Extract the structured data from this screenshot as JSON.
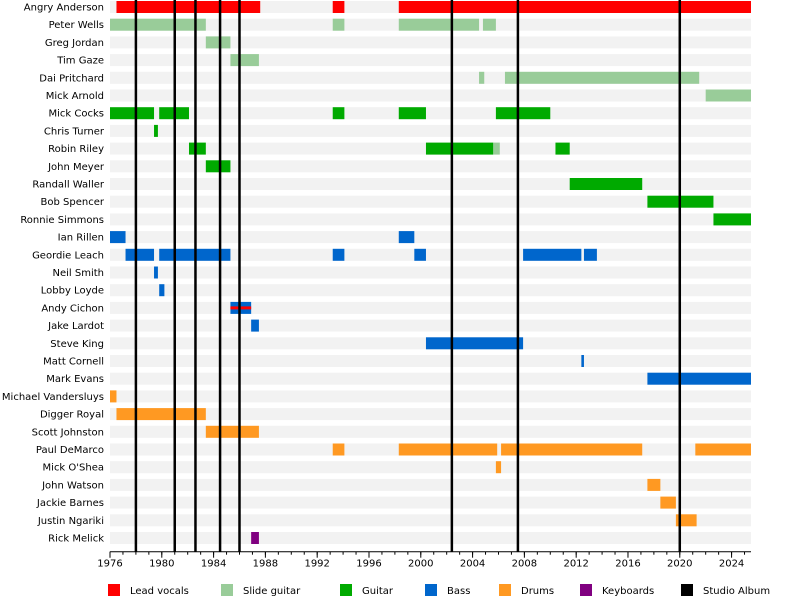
{
  "chart_data": {
    "type": "timeline",
    "x_range": [
      1976,
      2025.5
    ],
    "x_ticks": [
      1976,
      1980,
      1984,
      1988,
      1992,
      1996,
      2000,
      2004,
      2008,
      2012,
      2016,
      2020,
      2024
    ],
    "x_minor_step": 1,
    "grid": "alternating row stripes, vertical minor ticks each year",
    "roles": [
      {
        "key": "vocals",
        "label": "Lead vocals",
        "color": "#ff0000"
      },
      {
        "key": "slide",
        "label": "Slide guitar",
        "color": "#99cc99"
      },
      {
        "key": "guitar",
        "label": "Guitar",
        "color": "#00aa00"
      },
      {
        "key": "bass",
        "label": "Bass",
        "color": "#0066cc"
      },
      {
        "key": "drums",
        "label": "Drums",
        "color": "#ff9922"
      },
      {
        "key": "keys",
        "label": "Keyboards",
        "color": "#800080"
      },
      {
        "key": "album",
        "label": "Studio Album",
        "color": "#000000"
      }
    ],
    "albums": [
      1978,
      1981,
      1982.6,
      1984.5,
      1986,
      2002.4,
      2007.5,
      2020
    ],
    "members": [
      {
        "name": "Angry Anderson",
        "spans": [
          {
            "role": "vocals",
            "start": 1976.5,
            "end": 1987.6
          },
          {
            "role": "vocals",
            "start": 1993.2,
            "end": 1994.1
          },
          {
            "role": "vocals",
            "start": 1998.3,
            "end": 2025.5
          }
        ]
      },
      {
        "name": "Peter Wells",
        "spans": [
          {
            "role": "slide",
            "start": 1976,
            "end": 1983.4
          },
          {
            "role": "slide",
            "start": 1993.2,
            "end": 1994.1
          },
          {
            "role": "slide",
            "start": 1998.3,
            "end": 2004.5
          },
          {
            "role": "slide",
            "start": 2004.8,
            "end": 2005.8
          }
        ]
      },
      {
        "name": "Greg Jordan",
        "spans": [
          {
            "role": "slide",
            "start": 1983.4,
            "end": 1985.3
          }
        ]
      },
      {
        "name": "Tim Gaze",
        "spans": [
          {
            "role": "slide",
            "start": 1985.3,
            "end": 1987.5
          }
        ]
      },
      {
        "name": "Dai Pritchard",
        "spans": [
          {
            "role": "slide",
            "start": 2004.5,
            "end": 2004.9
          },
          {
            "role": "slide",
            "start": 2006.5,
            "end": 2021.5
          }
        ]
      },
      {
        "name": "Mick Arnold",
        "spans": [
          {
            "role": "slide",
            "start": 2022,
            "end": 2025.5
          }
        ]
      },
      {
        "name": "Mick Cocks",
        "spans": [
          {
            "role": "guitar",
            "start": 1976,
            "end": 1979.4
          },
          {
            "role": "guitar",
            "start": 1979.8,
            "end": 1982.1
          },
          {
            "role": "guitar",
            "start": 1993.2,
            "end": 1994.1
          },
          {
            "role": "guitar",
            "start": 1998.3,
            "end": 2000.4
          },
          {
            "role": "guitar",
            "start": 2005.8,
            "end": 2010
          }
        ]
      },
      {
        "name": "Chris Turner",
        "spans": [
          {
            "role": "guitar",
            "start": 1979.4,
            "end": 1979.7
          }
        ]
      },
      {
        "name": "Robin Riley",
        "spans": [
          {
            "role": "guitar",
            "start": 1982.1,
            "end": 1983.4
          },
          {
            "role": "guitar",
            "start": 2000.4,
            "end": 2005.6
          },
          {
            "role": "slide",
            "start": 2005.6,
            "end": 2006.1
          },
          {
            "role": "guitar",
            "start": 2010.4,
            "end": 2011.5
          }
        ]
      },
      {
        "name": "John Meyer",
        "spans": [
          {
            "role": "guitar",
            "start": 1983.4,
            "end": 1985.3
          }
        ]
      },
      {
        "name": "Randall Waller",
        "spans": [
          {
            "role": "guitar",
            "start": 2011.5,
            "end": 2017.1
          }
        ]
      },
      {
        "name": "Bob Spencer",
        "spans": [
          {
            "role": "guitar",
            "start": 2017.5,
            "end": 2022.6
          }
        ]
      },
      {
        "name": "Ronnie Simmons",
        "spans": [
          {
            "role": "guitar",
            "start": 2022.6,
            "end": 2025.5
          }
        ]
      },
      {
        "name": "Ian Rillen",
        "spans": [
          {
            "role": "bass",
            "start": 1976,
            "end": 1977.2
          },
          {
            "role": "bass",
            "start": 1998.3,
            "end": 1999.5
          }
        ]
      },
      {
        "name": "Geordie Leach",
        "spans": [
          {
            "role": "bass",
            "start": 1977.2,
            "end": 1979.4
          },
          {
            "role": "bass",
            "start": 1979.8,
            "end": 1985.3
          },
          {
            "role": "bass",
            "start": 1993.2,
            "end": 1994.1
          },
          {
            "role": "bass",
            "start": 1999.5,
            "end": 2000.4
          },
          {
            "role": "bass",
            "start": 2007.9,
            "end": 2012.4
          },
          {
            "role": "bass",
            "start": 2012.6,
            "end": 2013.6
          }
        ]
      },
      {
        "name": "Neil Smith",
        "spans": [
          {
            "role": "bass",
            "start": 1979.4,
            "end": 1979.7
          }
        ]
      },
      {
        "name": "Lobby Loyde",
        "spans": [
          {
            "role": "bass",
            "start": 1979.8,
            "end": 1980.2
          }
        ]
      },
      {
        "name": "Andy Cichon",
        "spans": [
          {
            "role": "bass",
            "start": 1985.3,
            "end": 1986.9,
            "stripe": "vocals"
          }
        ]
      },
      {
        "name": "Jake Lardot",
        "spans": [
          {
            "role": "bass",
            "start": 1986.9,
            "end": 1987.5
          }
        ]
      },
      {
        "name": "Steve King",
        "spans": [
          {
            "role": "bass",
            "start": 2000.4,
            "end": 2007.9
          }
        ]
      },
      {
        "name": "Matt Cornell",
        "spans": [
          {
            "role": "bass",
            "start": 2012.4,
            "end": 2012.6
          }
        ]
      },
      {
        "name": "Mark Evans",
        "spans": [
          {
            "role": "bass",
            "start": 2017.5,
            "end": 2025.5
          }
        ]
      },
      {
        "name": "Michael Vandersluys",
        "spans": [
          {
            "role": "drums",
            "start": 1976,
            "end": 1976.5
          }
        ]
      },
      {
        "name": "Digger Royal",
        "spans": [
          {
            "role": "drums",
            "start": 1976.5,
            "end": 1983.4
          }
        ]
      },
      {
        "name": "Scott Johnston",
        "spans": [
          {
            "role": "drums",
            "start": 1983.4,
            "end": 1987.5
          }
        ]
      },
      {
        "name": "Paul DeMarco",
        "spans": [
          {
            "role": "drums",
            "start": 1993.2,
            "end": 1994.1
          },
          {
            "role": "drums",
            "start": 1998.3,
            "end": 2005.9
          },
          {
            "role": "drums",
            "start": 2006.2,
            "end": 2017.1
          },
          {
            "role": "drums",
            "start": 2021.2,
            "end": 2025.5
          }
        ]
      },
      {
        "name": "Mick O'Shea",
        "spans": [
          {
            "role": "drums",
            "start": 2005.8,
            "end": 2006.2
          }
        ]
      },
      {
        "name": "John Watson",
        "spans": [
          {
            "role": "drums",
            "start": 2017.5,
            "end": 2018.5
          }
        ]
      },
      {
        "name": "Jackie Barnes",
        "spans": [
          {
            "role": "drums",
            "start": 2018.5,
            "end": 2019.7
          }
        ]
      },
      {
        "name": "Justin Ngariki",
        "spans": [
          {
            "role": "drums",
            "start": 2019.7,
            "end": 2021.3
          }
        ]
      },
      {
        "name": "Rick Melick",
        "spans": [
          {
            "role": "keys",
            "start": 1986.9,
            "end": 1987.5
          }
        ]
      }
    ]
  }
}
